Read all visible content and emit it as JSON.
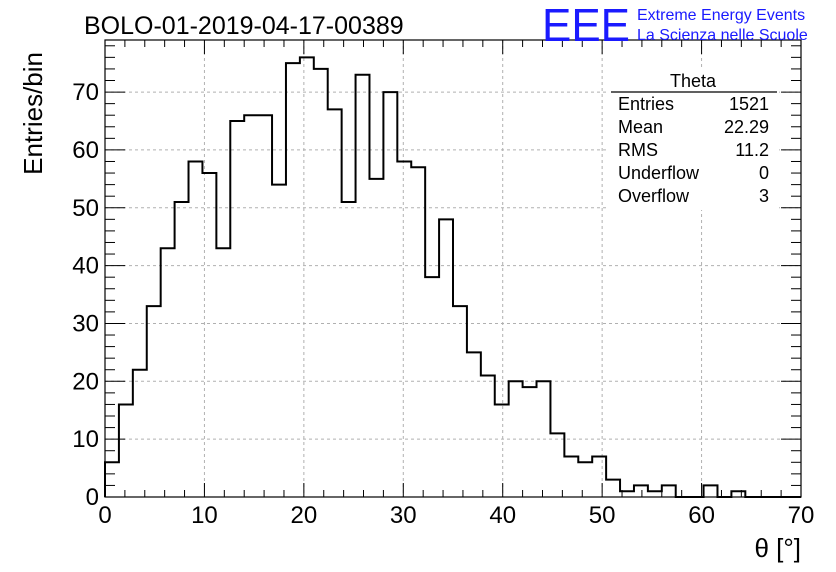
{
  "header": {
    "run_title": "BOLO-01-2019-04-17-00389",
    "logo_text": "EEE",
    "brand_line1": "Extreme Energy Events",
    "brand_line2": "La Scienza nelle Scuole"
  },
  "colors": {
    "brand": "#1a1aff",
    "histogram": "#000000",
    "grid": "#b0b0b0"
  },
  "stats": {
    "title": "Theta",
    "rows": [
      {
        "label": "Entries",
        "value": "1521"
      },
      {
        "label": "Mean",
        "value": "22.29"
      },
      {
        "label": "RMS",
        "value": "11.2"
      },
      {
        "label": "Underflow",
        "value": "0"
      },
      {
        "label": "Overflow",
        "value": "3"
      }
    ]
  },
  "chart_data": {
    "type": "bar",
    "style": "step-histogram",
    "xlabel": "θ [°]",
    "ylabel": "Entries/bin",
    "xlim": [
      0,
      70
    ],
    "ylim": [
      0,
      79
    ],
    "grid": true,
    "x_ticks": [
      0,
      10,
      20,
      30,
      40,
      50,
      60,
      70
    ],
    "y_ticks": [
      0,
      10,
      20,
      30,
      40,
      50,
      60,
      70
    ],
    "bin_width": 1.4,
    "values": [
      6,
      16,
      22,
      33,
      43,
      51,
      58,
      56,
      43,
      65,
      66,
      66,
      54,
      75,
      76,
      74,
      67,
      51,
      73,
      55,
      70,
      58,
      57,
      38,
      48,
      33,
      25,
      21,
      16,
      20,
      19,
      20,
      11,
      7,
      6,
      7,
      3,
      1,
      2,
      1,
      2,
      0,
      0,
      2,
      0,
      1,
      0,
      0,
      0,
      0
    ]
  }
}
